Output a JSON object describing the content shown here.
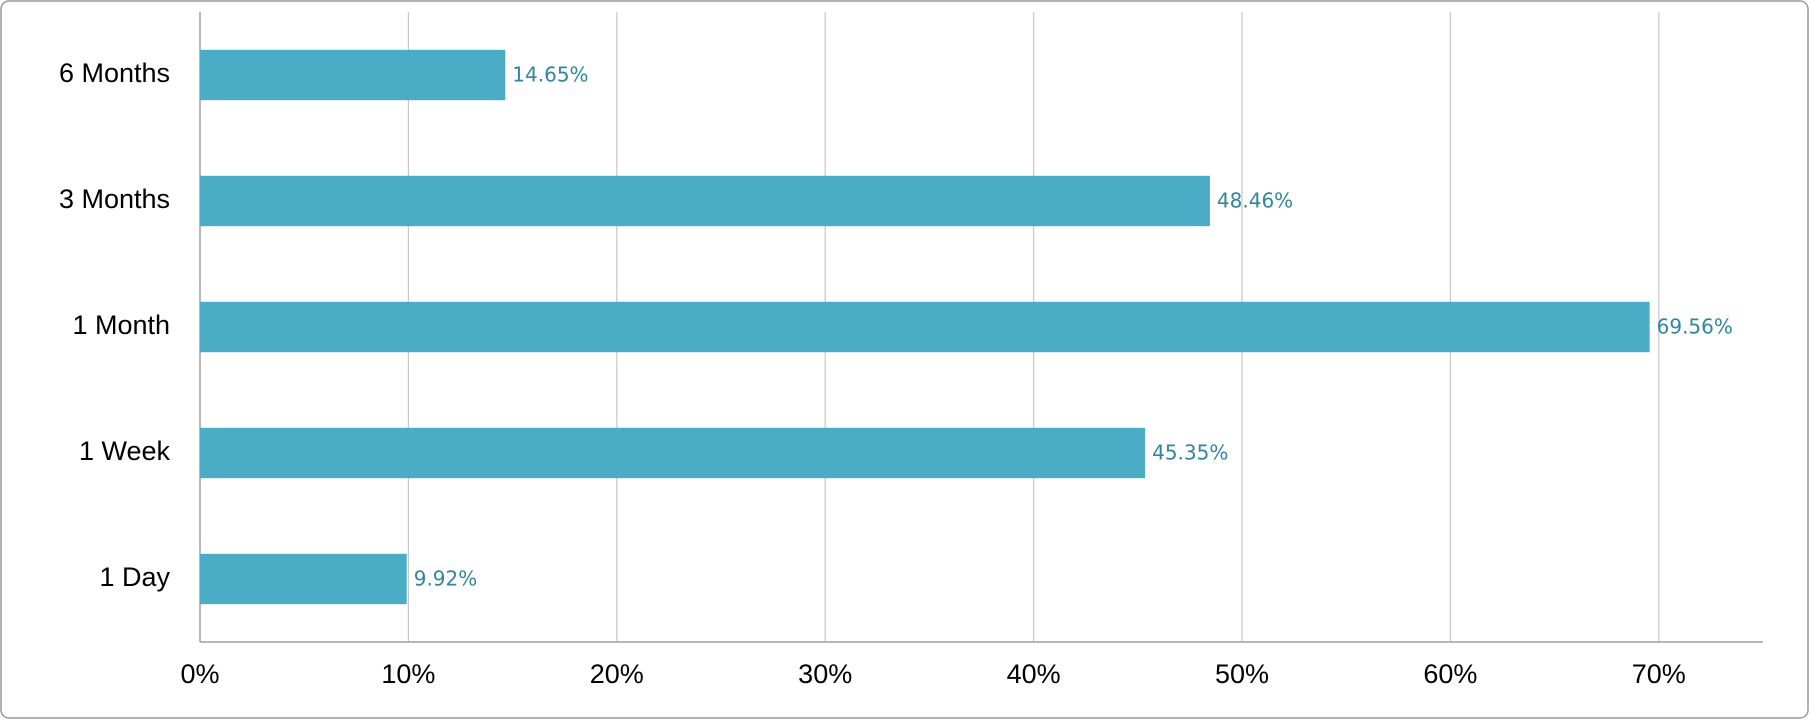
{
  "chart_data": {
    "type": "barh",
    "categories": [
      "6 Months",
      "3 Months",
      "1 Month",
      "1 Week",
      "1 Day"
    ],
    "values": [
      14.65,
      48.46,
      69.56,
      45.35,
      9.92
    ],
    "value_labels": [
      "14.65%",
      "48.46%",
      "69.56%",
      "45.35%",
      "9.92%"
    ],
    "color": "#4bacc6",
    "xlim": [
      0,
      75
    ],
    "xticks": [
      {
        "value": 0,
        "label": "0%"
      },
      {
        "value": 10,
        "label": "10%"
      },
      {
        "value": 20,
        "label": "20%"
      },
      {
        "value": 30,
        "label": "30%"
      },
      {
        "value": 40,
        "label": "40%"
      },
      {
        "value": 50,
        "label": "50%"
      },
      {
        "value": 60,
        "label": "60%"
      },
      {
        "value": 70,
        "label": "70%"
      }
    ],
    "grid": true
  }
}
